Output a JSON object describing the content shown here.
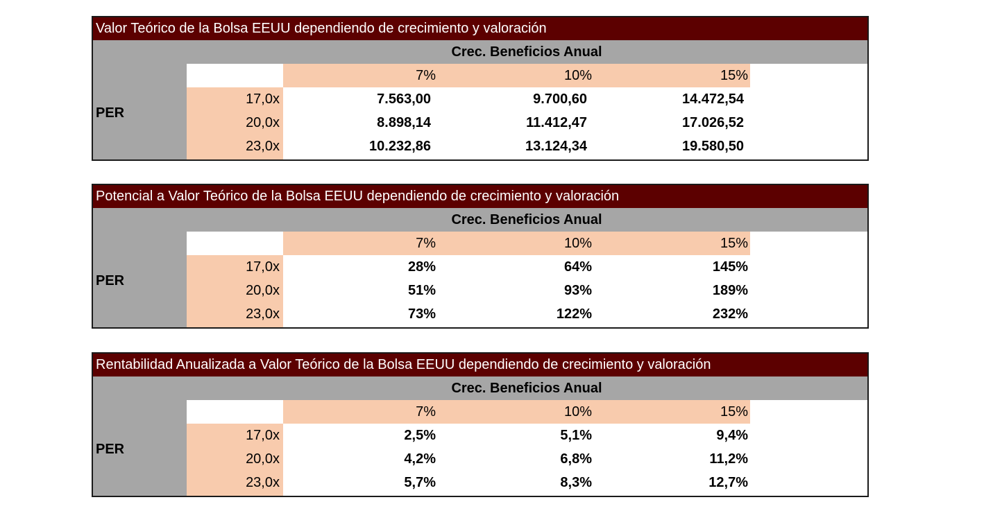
{
  "tables": [
    {
      "title": "Valor Teórico de la Bolsa EEUU dependiendo de crecimiento y valoración",
      "band_label": "Crec. Beneficios Anual",
      "row_group_label": "PER",
      "columns": [
        "7%",
        "10%",
        "15%"
      ],
      "rows": [
        {
          "label": "17,0x",
          "values": [
            "7.563,00",
            "9.700,60",
            "14.472,54"
          ]
        },
        {
          "label": "20,0x",
          "values": [
            "8.898,14",
            "11.412,47",
            "17.026,52"
          ]
        },
        {
          "label": "23,0x",
          "values": [
            "10.232,86",
            "13.124,34",
            "19.580,50"
          ]
        }
      ]
    },
    {
      "title": "Potencial a Valor Teórico de la Bolsa EEUU dependiendo de crecimiento y valoración",
      "band_label": "Crec. Beneficios Anual",
      "row_group_label": "PER",
      "columns": [
        "7%",
        "10%",
        "15%"
      ],
      "rows": [
        {
          "label": "17,0x",
          "values": [
            "28%",
            "64%",
            "145%"
          ]
        },
        {
          "label": "20,0x",
          "values": [
            "51%",
            "93%",
            "189%"
          ]
        },
        {
          "label": "23,0x",
          "values": [
            "73%",
            "122%",
            "232%"
          ]
        }
      ]
    },
    {
      "title": "Rentabilidad Anualizada a Valor Teórico de la Bolsa EEUU dependiendo de crecimiento y valoración",
      "band_label": "Crec. Beneficios Anual",
      "row_group_label": "PER",
      "columns": [
        "7%",
        "10%",
        "15%"
      ],
      "rows": [
        {
          "label": "17,0x",
          "values": [
            "2,5%",
            "5,1%",
            "9,4%"
          ]
        },
        {
          "label": "20,0x",
          "values": [
            "4,2%",
            "6,8%",
            "11,2%"
          ]
        },
        {
          "label": "23,0x",
          "values": [
            "5,7%",
            "8,3%",
            "12,7%"
          ]
        }
      ]
    }
  ],
  "colors": {
    "title_bg": "#5c0000",
    "band_bg": "#a6a6a6",
    "header_bg": "#f8cbad"
  }
}
